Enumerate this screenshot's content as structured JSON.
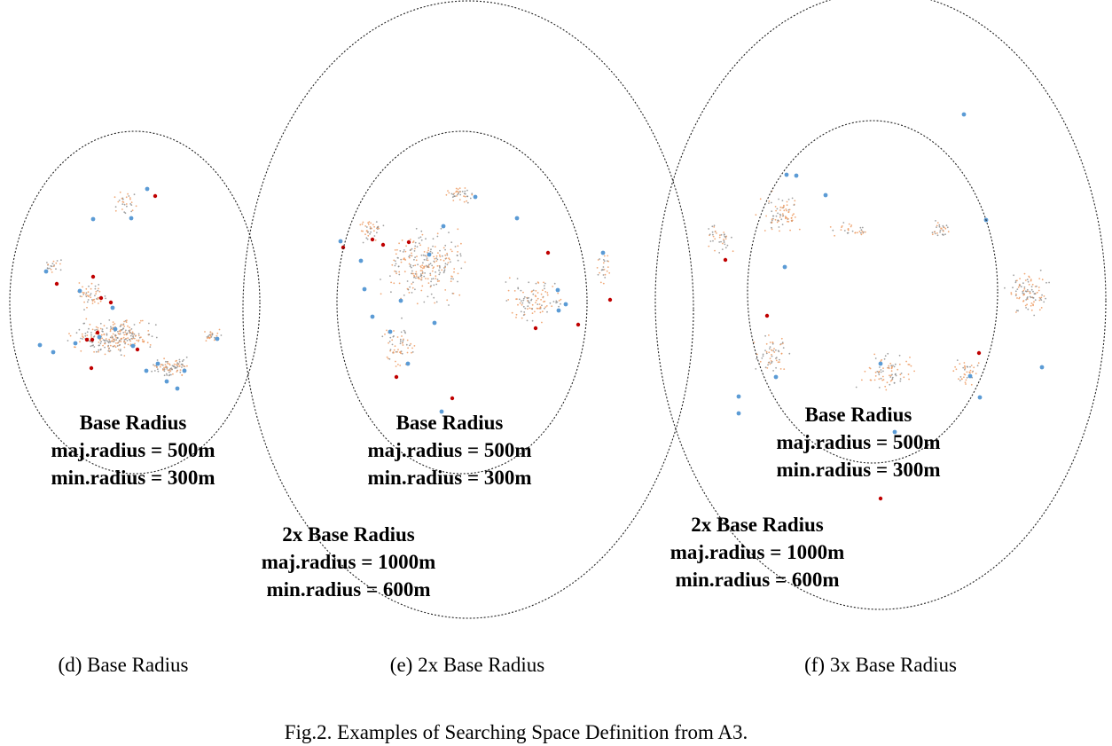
{
  "colors": {
    "accent_blue": "#5b9bd5",
    "accent_orange": "#ed9a60",
    "accent_gray": "#8a8a8a",
    "accent_red": "#c00000",
    "ellipse_stroke": "#222222"
  },
  "panels": [
    {
      "caption": "(d) Base Radius",
      "labels": [
        {
          "lines": [
            "Base Radius",
            "maj.radius = 500m",
            "min.radius = 300m"
          ]
        }
      ]
    },
    {
      "caption": "(e) 2x Base Radius",
      "labels": [
        {
          "lines": [
            "Base Radius",
            "maj.radius = 500m",
            "min.radius = 300m"
          ]
        },
        {
          "lines": [
            "2x Base Radius",
            "maj.radius = 1000m",
            "min.radius = 600m"
          ]
        }
      ]
    },
    {
      "caption": "(f) 3x Base Radius",
      "labels": [
        {
          "lines": [
            "Base Radius",
            "maj.radius = 500m",
            "min.radius = 300m"
          ]
        },
        {
          "lines": [
            "2x Base Radius",
            "maj.radius = 1000m",
            "min.radius = 600m"
          ]
        }
      ]
    }
  ],
  "figure_caption": "Fig.2. Examples of Searching Space Definition from A3."
}
